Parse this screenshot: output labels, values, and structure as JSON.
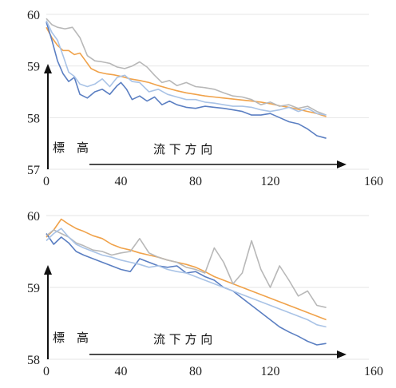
{
  "chart_data": [
    {
      "type": "line",
      "title": "",
      "annotation_label": "標　高",
      "annotation_direction": "流 下 方 向",
      "xlim": [
        0,
        160
      ],
      "ylim": [
        57,
        60
      ],
      "x_ticks": [
        "0",
        "40",
        "80",
        "120",
        "160"
      ],
      "y_ticks": [
        "57",
        "58",
        "59",
        "60"
      ],
      "grid": "horizontal",
      "series": [
        {
          "color": "#f0a24a",
          "points": [
            [
              0,
              59.75
            ],
            [
              3,
              59.55
            ],
            [
              6,
              59.4
            ],
            [
              9,
              59.3
            ],
            [
              12,
              59.3
            ],
            [
              15,
              59.22
            ],
            [
              18,
              59.25
            ],
            [
              21,
              59.1
            ],
            [
              24,
              58.95
            ],
            [
              28,
              58.88
            ],
            [
              32,
              58.85
            ],
            [
              36,
              58.83
            ],
            [
              40,
              58.8
            ],
            [
              45,
              58.75
            ],
            [
              50,
              58.72
            ],
            [
              55,
              58.68
            ],
            [
              60,
              58.62
            ],
            [
              65,
              58.57
            ],
            [
              70,
              58.52
            ],
            [
              75,
              58.48
            ],
            [
              80,
              58.45
            ],
            [
              85,
              58.42
            ],
            [
              90,
              58.4
            ],
            [
              95,
              58.38
            ],
            [
              100,
              58.36
            ],
            [
              105,
              58.34
            ],
            [
              110,
              58.32
            ],
            [
              115,
              58.3
            ],
            [
              120,
              58.27
            ],
            [
              125,
              58.23
            ],
            [
              130,
              58.2
            ],
            [
              135,
              58.16
            ],
            [
              140,
              58.12
            ],
            [
              145,
              58.08
            ],
            [
              150,
              58.02
            ]
          ]
        },
        {
          "color": "#5b7fc2",
          "points": [
            [
              0,
              59.85
            ],
            [
              3,
              59.5
            ],
            [
              6,
              59.1
            ],
            [
              9,
              58.85
            ],
            [
              12,
              58.7
            ],
            [
              15,
              58.78
            ],
            [
              18,
              58.45
            ],
            [
              22,
              58.38
            ],
            [
              26,
              58.5
            ],
            [
              30,
              58.55
            ],
            [
              34,
              58.45
            ],
            [
              38,
              58.62
            ],
            [
              40,
              58.68
            ],
            [
              43,
              58.55
            ],
            [
              46,
              58.35
            ],
            [
              50,
              58.42
            ],
            [
              54,
              58.32
            ],
            [
              58,
              58.4
            ],
            [
              62,
              58.25
            ],
            [
              66,
              58.32
            ],
            [
              70,
              58.25
            ],
            [
              75,
              58.2
            ],
            [
              80,
              58.18
            ],
            [
              85,
              58.22
            ],
            [
              90,
              58.2
            ],
            [
              95,
              58.18
            ],
            [
              100,
              58.15
            ],
            [
              105,
              58.12
            ],
            [
              110,
              58.05
            ],
            [
              115,
              58.05
            ],
            [
              120,
              58.08
            ],
            [
              125,
              58.0
            ],
            [
              130,
              57.92
            ],
            [
              135,
              57.88
            ],
            [
              140,
              57.78
            ],
            [
              145,
              57.65
            ],
            [
              150,
              57.6
            ]
          ]
        },
        {
          "color": "#b8b8b8",
          "points": [
            [
              0,
              59.92
            ],
            [
              3,
              59.8
            ],
            [
              6,
              59.75
            ],
            [
              10,
              59.72
            ],
            [
              14,
              59.75
            ],
            [
              18,
              59.55
            ],
            [
              22,
              59.2
            ],
            [
              26,
              59.1
            ],
            [
              30,
              59.08
            ],
            [
              34,
              59.05
            ],
            [
              38,
              58.98
            ],
            [
              42,
              58.95
            ],
            [
              46,
              59.0
            ],
            [
              50,
              59.08
            ],
            [
              54,
              58.98
            ],
            [
              58,
              58.82
            ],
            [
              62,
              58.68
            ],
            [
              66,
              58.72
            ],
            [
              70,
              58.62
            ],
            [
              75,
              58.68
            ],
            [
              80,
              58.6
            ],
            [
              85,
              58.58
            ],
            [
              90,
              58.55
            ],
            [
              95,
              58.48
            ],
            [
              100,
              58.42
            ],
            [
              105,
              58.4
            ],
            [
              110,
              58.35
            ],
            [
              115,
              58.25
            ],
            [
              120,
              58.3
            ],
            [
              125,
              58.22
            ],
            [
              130,
              58.25
            ],
            [
              135,
              58.18
            ],
            [
              140,
              58.22
            ],
            [
              145,
              58.12
            ],
            [
              150,
              58.05
            ]
          ]
        },
        {
          "color": "#a9c3e6",
          "points": [
            [
              0,
              59.88
            ],
            [
              3,
              59.65
            ],
            [
              6,
              59.5
            ],
            [
              9,
              59.2
            ],
            [
              12,
              58.88
            ],
            [
              15,
              58.8
            ],
            [
              18,
              58.65
            ],
            [
              22,
              58.6
            ],
            [
              26,
              58.65
            ],
            [
              30,
              58.75
            ],
            [
              34,
              58.6
            ],
            [
              38,
              58.78
            ],
            [
              42,
              58.82
            ],
            [
              46,
              58.7
            ],
            [
              50,
              58.68
            ],
            [
              55,
              58.5
            ],
            [
              60,
              58.55
            ],
            [
              65,
              58.45
            ],
            [
              70,
              58.4
            ],
            [
              75,
              58.35
            ],
            [
              80,
              58.35
            ],
            [
              85,
              58.3
            ],
            [
              90,
              58.28
            ],
            [
              95,
              58.25
            ],
            [
              100,
              58.22
            ],
            [
              105,
              58.22
            ],
            [
              110,
              58.2
            ],
            [
              115,
              58.15
            ],
            [
              120,
              58.12
            ],
            [
              125,
              58.15
            ],
            [
              130,
              58.2
            ],
            [
              135,
              58.12
            ],
            [
              140,
              58.18
            ],
            [
              145,
              58.08
            ],
            [
              150,
              58.05
            ]
          ]
        }
      ]
    },
    {
      "type": "line",
      "title": "",
      "annotation_label": "標　高",
      "annotation_direction": "流 下 方 向",
      "xlim": [
        0,
        160
      ],
      "ylim": [
        58,
        60
      ],
      "x_ticks": [
        "0",
        "40",
        "80",
        "120",
        "160"
      ],
      "y_ticks": [
        "58",
        "59",
        "60"
      ],
      "grid": "horizontal",
      "series": [
        {
          "color": "#f0a24a",
          "points": [
            [
              0,
              59.7
            ],
            [
              4,
              59.8
            ],
            [
              8,
              59.95
            ],
            [
              12,
              59.88
            ],
            [
              16,
              59.82
            ],
            [
              20,
              59.78
            ],
            [
              25,
              59.72
            ],
            [
              30,
              59.68
            ],
            [
              35,
              59.6
            ],
            [
              40,
              59.55
            ],
            [
              45,
              59.52
            ],
            [
              50,
              59.48
            ],
            [
              55,
              59.45
            ],
            [
              60,
              59.42
            ],
            [
              65,
              59.38
            ],
            [
              70,
              59.35
            ],
            [
              75,
              59.32
            ],
            [
              80,
              59.28
            ],
            [
              85,
              59.22
            ],
            [
              90,
              59.15
            ],
            [
              95,
              59.1
            ],
            [
              100,
              59.05
            ],
            [
              105,
              59.0
            ],
            [
              110,
              58.95
            ],
            [
              115,
              58.9
            ],
            [
              120,
              58.85
            ],
            [
              125,
              58.8
            ],
            [
              130,
              58.75
            ],
            [
              135,
              58.7
            ],
            [
              140,
              58.65
            ],
            [
              145,
              58.6
            ],
            [
              150,
              58.55
            ]
          ]
        },
        {
          "color": "#5b7fc2",
          "points": [
            [
              0,
              59.75
            ],
            [
              4,
              59.6
            ],
            [
              8,
              59.7
            ],
            [
              12,
              59.62
            ],
            [
              16,
              59.5
            ],
            [
              20,
              59.45
            ],
            [
              25,
              59.4
            ],
            [
              30,
              59.35
            ],
            [
              35,
              59.3
            ],
            [
              40,
              59.25
            ],
            [
              45,
              59.22
            ],
            [
              50,
              59.4
            ],
            [
              55,
              59.35
            ],
            [
              60,
              59.3
            ],
            [
              65,
              59.28
            ],
            [
              70,
              59.3
            ],
            [
              75,
              59.2
            ],
            [
              80,
              59.22
            ],
            [
              85,
              59.15
            ],
            [
              90,
              59.1
            ],
            [
              95,
              59.0
            ],
            [
              100,
              58.95
            ],
            [
              105,
              58.85
            ],
            [
              110,
              58.75
            ],
            [
              115,
              58.65
            ],
            [
              120,
              58.55
            ],
            [
              125,
              58.45
            ],
            [
              130,
              58.38
            ],
            [
              135,
              58.32
            ],
            [
              140,
              58.25
            ],
            [
              145,
              58.2
            ],
            [
              150,
              58.22
            ]
          ]
        },
        {
          "color": "#b8b8b8",
          "points": [
            [
              0,
              59.72
            ],
            [
              4,
              59.8
            ],
            [
              8,
              59.75
            ],
            [
              12,
              59.7
            ],
            [
              16,
              59.62
            ],
            [
              20,
              59.58
            ],
            [
              25,
              59.52
            ],
            [
              30,
              59.5
            ],
            [
              35,
              59.45
            ],
            [
              40,
              59.48
            ],
            [
              45,
              59.5
            ],
            [
              50,
              59.68
            ],
            [
              55,
              59.48
            ],
            [
              60,
              59.42
            ],
            [
              65,
              59.38
            ],
            [
              70,
              59.35
            ],
            [
              75,
              59.28
            ],
            [
              80,
              59.25
            ],
            [
              85,
              59.2
            ],
            [
              90,
              59.55
            ],
            [
              95,
              59.35
            ],
            [
              100,
              59.05
            ],
            [
              105,
              59.2
            ],
            [
              110,
              59.65
            ],
            [
              115,
              59.25
            ],
            [
              120,
              59.0
            ],
            [
              125,
              59.3
            ],
            [
              130,
              59.1
            ],
            [
              135,
              58.88
            ],
            [
              140,
              58.95
            ],
            [
              145,
              58.75
            ],
            [
              150,
              58.72
            ]
          ]
        },
        {
          "color": "#a9c3e6",
          "points": [
            [
              0,
              59.65
            ],
            [
              4,
              59.75
            ],
            [
              8,
              59.82
            ],
            [
              12,
              59.7
            ],
            [
              16,
              59.6
            ],
            [
              20,
              59.55
            ],
            [
              25,
              59.5
            ],
            [
              30,
              59.45
            ],
            [
              35,
              59.42
            ],
            [
              40,
              59.38
            ],
            [
              45,
              59.35
            ],
            [
              50,
              59.32
            ],
            [
              55,
              59.28
            ],
            [
              60,
              59.3
            ],
            [
              65,
              59.25
            ],
            [
              70,
              59.22
            ],
            [
              75,
              59.2
            ],
            [
              80,
              59.15
            ],
            [
              85,
              59.1
            ],
            [
              90,
              59.05
            ],
            [
              95,
              59.0
            ],
            [
              100,
              58.95
            ],
            [
              105,
              58.9
            ],
            [
              110,
              58.85
            ],
            [
              115,
              58.8
            ],
            [
              120,
              58.75
            ],
            [
              125,
              58.7
            ],
            [
              130,
              58.65
            ],
            [
              135,
              58.6
            ],
            [
              140,
              58.55
            ],
            [
              145,
              58.48
            ],
            [
              150,
              58.45
            ]
          ]
        }
      ]
    }
  ]
}
